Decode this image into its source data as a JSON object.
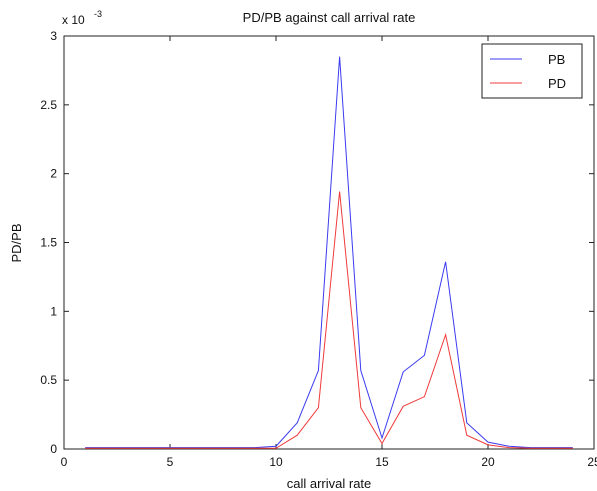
{
  "chart_data": {
    "type": "line",
    "title": "PD/PB against call arrival rate",
    "xlabel": "call arrival rate",
    "ylabel": "PD/PB",
    "exponent_label": "x 10",
    "exponent_power": "-3",
    "xlim": [
      0,
      25
    ],
    "ylim": [
      0,
      3
    ],
    "xticks": [
      "0",
      "5",
      "10",
      "15",
      "20",
      "25"
    ],
    "yticks": [
      "0",
      "0.5",
      "1",
      "1.5",
      "2",
      "2.5",
      "3"
    ],
    "legend_position": "top-right",
    "x": [
      1,
      2,
      3,
      4,
      5,
      6,
      7,
      8,
      9,
      10,
      11,
      12,
      13,
      14,
      15,
      16,
      17,
      18,
      19,
      20,
      21,
      22,
      23,
      24
    ],
    "series": [
      {
        "name": "PB",
        "color": "#3b3bf0",
        "values": [
          0.01,
          0.01,
          0.01,
          0.01,
          0.01,
          0.01,
          0.01,
          0.01,
          0.01,
          0.02,
          0.19,
          0.57,
          2.85,
          0.57,
          0.08,
          0.56,
          0.68,
          1.36,
          0.19,
          0.05,
          0.02,
          0.01,
          0.01,
          0.01
        ]
      },
      {
        "name": "PD",
        "color": "#f03b3b",
        "values": [
          0.005,
          0.005,
          0.005,
          0.005,
          0.005,
          0.005,
          0.005,
          0.005,
          0.005,
          0.005,
          0.1,
          0.3,
          1.87,
          0.3,
          0.04,
          0.31,
          0.38,
          0.83,
          0.1,
          0.03,
          0.01,
          0.005,
          0.005,
          0.005
        ]
      }
    ]
  }
}
